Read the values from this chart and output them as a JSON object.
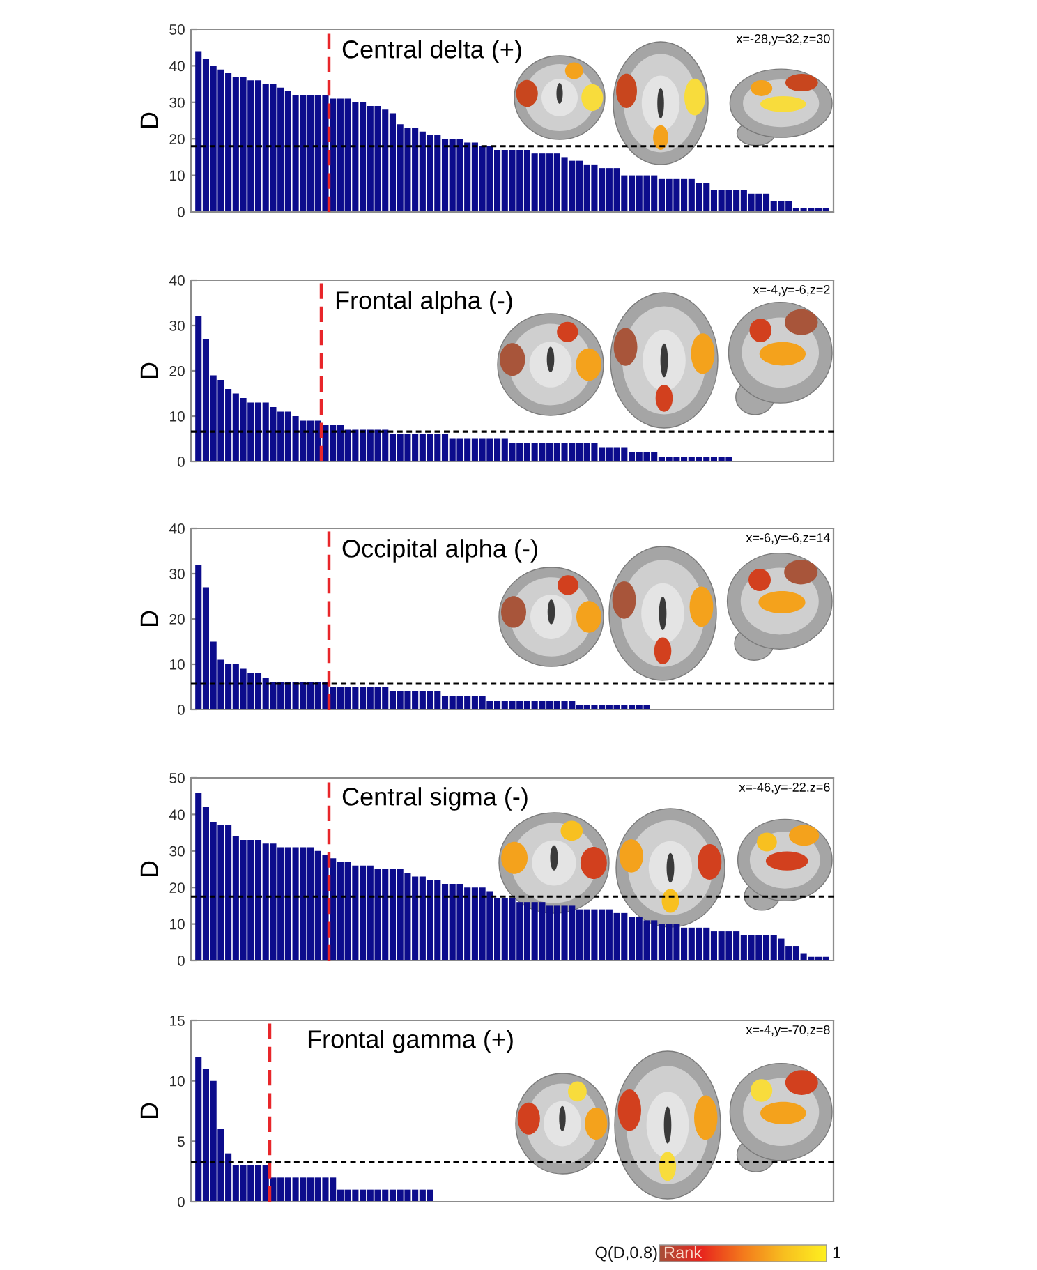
{
  "chart_data": [
    {
      "type": "bar",
      "title": "Central delta (+)",
      "ylabel": "D",
      "color": "#0c0c8c",
      "ylim": [
        0,
        50
      ],
      "yticks": [
        0,
        10,
        20,
        30,
        40,
        50
      ],
      "annotations": [
        "x=-28,y=32,z=30"
      ],
      "ref_lines": [
        {
          "axis": "y",
          "value": 18,
          "color": "#000000",
          "line_style": "dashed"
        }
      ],
      "categories": [
        null,
        null,
        null,
        null,
        null,
        null,
        null,
        null,
        null,
        null,
        null,
        null,
        null,
        null,
        null,
        null,
        null,
        null,
        null,
        null,
        null,
        null,
        null,
        null,
        null,
        null,
        null,
        null,
        null,
        null,
        null,
        null,
        null,
        null,
        null,
        null,
        null,
        null,
        null,
        null,
        null,
        null,
        null,
        null,
        null,
        null,
        null,
        null,
        null,
        null,
        null,
        null,
        null,
        null,
        null,
        null,
        null,
        null,
        null,
        null,
        null,
        null,
        null,
        null,
        null,
        null,
        null,
        null,
        null,
        null,
        null,
        null,
        null,
        null,
        null,
        null,
        null,
        null,
        null,
        null,
        null,
        null,
        null,
        null,
        null
      ],
      "values": [
        44,
        42,
        40,
        39,
        38,
        37,
        37,
        36,
        36,
        35,
        35,
        34,
        33,
        32,
        32,
        32,
        32,
        32,
        31,
        31,
        31,
        30,
        30,
        29,
        29,
        28,
        27,
        24,
        23,
        23,
        22,
        21,
        21,
        20,
        20,
        20,
        19,
        19,
        18,
        18,
        17,
        17,
        17,
        17,
        17,
        16,
        16,
        16,
        16,
        15,
        14,
        14,
        13,
        13,
        12,
        12,
        12,
        10,
        10,
        10,
        10,
        10,
        9,
        9,
        9,
        9,
        9,
        8,
        8,
        6,
        6,
        6,
        6,
        6,
        5,
        5,
        5,
        3,
        3,
        3,
        1,
        1,
        1,
        1,
        1
      ]
    },
    {
      "type": "bar",
      "title": "Frontal alpha (-)",
      "ylabel": "D",
      "color": "#0c0c8c",
      "ylim": [
        0,
        40
      ],
      "yticks": [
        0,
        10,
        20,
        30,
        40
      ],
      "annotations": [
        "x=-4,y=-6,z=2"
      ],
      "ref_lines": [
        {
          "axis": "y",
          "value": 6.6,
          "color": "#000000",
          "line_style": "dashed"
        }
      ],
      "categories": [
        null,
        null,
        null,
        null,
        null,
        null,
        null,
        null,
        null,
        null,
        null,
        null,
        null,
        null,
        null,
        null,
        null,
        null,
        null,
        null,
        null,
        null,
        null,
        null,
        null,
        null,
        null,
        null,
        null,
        null,
        null,
        null,
        null,
        null,
        null,
        null,
        null,
        null,
        null,
        null,
        null,
        null,
        null,
        null,
        null,
        null,
        null,
        null,
        null,
        null,
        null,
        null,
        null,
        null,
        null,
        null,
        null,
        null,
        null,
        null,
        null,
        null,
        null,
        null,
        null,
        null,
        null,
        null,
        null,
        null,
        null,
        null,
        null,
        null,
        null,
        null,
        null,
        null,
        null,
        null,
        null,
        null,
        null,
        null,
        null
      ],
      "values": [
        32,
        27,
        19,
        18,
        16,
        15,
        14,
        13,
        13,
        13,
        12,
        11,
        11,
        10,
        9,
        9,
        9,
        8,
        8,
        8,
        7,
        7,
        7,
        7,
        7,
        7,
        6,
        6,
        6,
        6,
        6,
        6,
        6,
        6,
        5,
        5,
        5,
        5,
        5,
        5,
        5,
        5,
        4,
        4,
        4,
        4,
        4,
        4,
        4,
        4,
        4,
        4,
        4,
        4,
        3,
        3,
        3,
        3,
        2,
        2,
        2,
        2,
        1,
        1,
        1,
        1,
        1,
        1,
        1,
        1,
        1,
        1,
        null,
        null,
        null,
        null,
        null,
        null,
        null,
        null,
        null,
        null,
        null,
        null,
        null
      ]
    },
    {
      "type": "bar",
      "title": "Occipital alpha (-)",
      "ylabel": "D",
      "color": "#0c0c8c",
      "ylim": [
        0,
        40
      ],
      "yticks": [
        0,
        10,
        20,
        30,
        40
      ],
      "annotations": [
        "x=-6,y=-6,z=14"
      ],
      "ref_lines": [
        {
          "axis": "y",
          "value": 5.7,
          "color": "#000000",
          "line_style": "dashed"
        }
      ],
      "categories": [
        null,
        null,
        null,
        null,
        null,
        null,
        null,
        null,
        null,
        null,
        null,
        null,
        null,
        null,
        null,
        null,
        null,
        null,
        null,
        null,
        null,
        null,
        null,
        null,
        null,
        null,
        null,
        null,
        null,
        null,
        null,
        null,
        null,
        null,
        null,
        null,
        null,
        null,
        null,
        null,
        null,
        null,
        null,
        null,
        null,
        null,
        null,
        null,
        null,
        null,
        null,
        null,
        null,
        null,
        null,
        null,
        null,
        null,
        null,
        null,
        null,
        null,
        null,
        null,
        null,
        null,
        null,
        null,
        null,
        null,
        null,
        null,
        null,
        null,
        null,
        null,
        null,
        null,
        null,
        null,
        null,
        null,
        null,
        null,
        null
      ],
      "values": [
        32,
        27,
        15,
        11,
        10,
        10,
        9,
        8,
        8,
        7,
        6,
        6,
        6,
        6,
        6,
        6,
        6,
        6,
        5,
        5,
        5,
        5,
        5,
        5,
        5,
        5,
        4,
        4,
        4,
        4,
        4,
        4,
        4,
        3,
        3,
        3,
        3,
        3,
        3,
        2,
        2,
        2,
        2,
        2,
        2,
        2,
        2,
        2,
        2,
        2,
        2,
        1,
        1,
        1,
        1,
        1,
        1,
        1,
        1,
        1,
        1,
        null,
        null,
        null,
        null,
        null,
        null,
        null,
        null,
        null,
        null,
        null,
        null,
        null,
        null,
        null,
        null,
        null,
        null,
        null,
        null,
        null,
        null,
        null,
        null
      ]
    },
    {
      "type": "bar",
      "title": "Central sigma (-)",
      "ylabel": "D",
      "color": "#0c0c8c",
      "ylim": [
        0,
        50
      ],
      "yticks": [
        0,
        10,
        20,
        30,
        40,
        50
      ],
      "annotations": [
        "x=-46,y=-22,z=6"
      ],
      "ref_lines": [
        {
          "axis": "y",
          "value": 17.5,
          "color": "#000000",
          "line_style": "dashed"
        }
      ],
      "categories": [
        null,
        null,
        null,
        null,
        null,
        null,
        null,
        null,
        null,
        null,
        null,
        null,
        null,
        null,
        null,
        null,
        null,
        null,
        null,
        null,
        null,
        null,
        null,
        null,
        null,
        null,
        null,
        null,
        null,
        null,
        null,
        null,
        null,
        null,
        null,
        null,
        null,
        null,
        null,
        null,
        null,
        null,
        null,
        null,
        null,
        null,
        null,
        null,
        null,
        null,
        null,
        null,
        null,
        null,
        null,
        null,
        null,
        null,
        null,
        null,
        null,
        null,
        null,
        null,
        null,
        null,
        null,
        null,
        null,
        null,
        null,
        null,
        null,
        null,
        null,
        null,
        null,
        null,
        null,
        null,
        null,
        null,
        null,
        null,
        null
      ],
      "values": [
        46,
        42,
        38,
        37,
        37,
        34,
        33,
        33,
        33,
        32,
        32,
        31,
        31,
        31,
        31,
        31,
        30,
        29,
        28,
        27,
        27,
        26,
        26,
        26,
        25,
        25,
        25,
        25,
        24,
        23,
        23,
        22,
        22,
        21,
        21,
        21,
        20,
        20,
        20,
        19,
        17,
        17,
        17,
        16,
        16,
        16,
        16,
        15,
        15,
        15,
        15,
        14,
        14,
        14,
        14,
        14,
        13,
        13,
        12,
        12,
        11,
        11,
        10,
        10,
        10,
        9,
        9,
        9,
        9,
        8,
        8,
        8,
        8,
        7,
        7,
        7,
        7,
        7,
        6,
        4,
        4,
        2,
        1,
        1,
        1
      ]
    },
    {
      "type": "bar",
      "title": "Frontal gamma (+)",
      "ylabel": "D",
      "color": "#0c0c8c",
      "ylim": [
        0,
        15
      ],
      "yticks": [
        0,
        5,
        10,
        15
      ],
      "annotations": [
        "x=-4,y=-70,z=8"
      ],
      "ref_lines": [
        {
          "axis": "y",
          "value": 3.3,
          "color": "#000000",
          "line_style": "dashed"
        }
      ],
      "categories": [
        null,
        null,
        null,
        null,
        null,
        null,
        null,
        null,
        null,
        null,
        null,
        null,
        null,
        null,
        null,
        null,
        null,
        null,
        null,
        null,
        null,
        null,
        null,
        null,
        null,
        null,
        null,
        null,
        null,
        null,
        null,
        null,
        null,
        null,
        null,
        null,
        null,
        null,
        null,
        null,
        null,
        null,
        null,
        null,
        null,
        null,
        null,
        null,
        null,
        null,
        null,
        null,
        null,
        null,
        null,
        null,
        null,
        null,
        null,
        null,
        null,
        null,
        null,
        null,
        null,
        null,
        null,
        null,
        null,
        null,
        null,
        null,
        null,
        null,
        null,
        null,
        null,
        null,
        null,
        null,
        null,
        null,
        null,
        null,
        null
      ],
      "values": [
        12,
        11,
        10,
        6,
        4,
        3,
        3,
        3,
        3,
        3,
        2,
        2,
        2,
        2,
        2,
        2,
        2,
        2,
        2,
        1,
        1,
        1,
        1,
        1,
        1,
        1,
        1,
        1,
        1,
        1,
        1,
        1,
        null,
        null,
        null,
        null,
        null,
        null,
        null,
        null,
        null,
        null,
        null,
        null,
        null,
        null,
        null,
        null,
        null,
        null,
        null,
        null,
        null,
        null,
        null,
        null,
        null,
        null,
        null,
        null,
        null,
        null,
        null,
        null,
        null,
        null,
        null,
        null,
        null,
        null,
        null,
        null,
        null,
        null,
        null,
        null,
        null,
        null,
        null,
        null,
        null,
        null,
        null,
        null,
        null
      ]
    },
    {
      "type": "other",
      "annotations": [
        "Q(D,0.8)",
        "Rank",
        "1"
      ]
    }
  ]
}
